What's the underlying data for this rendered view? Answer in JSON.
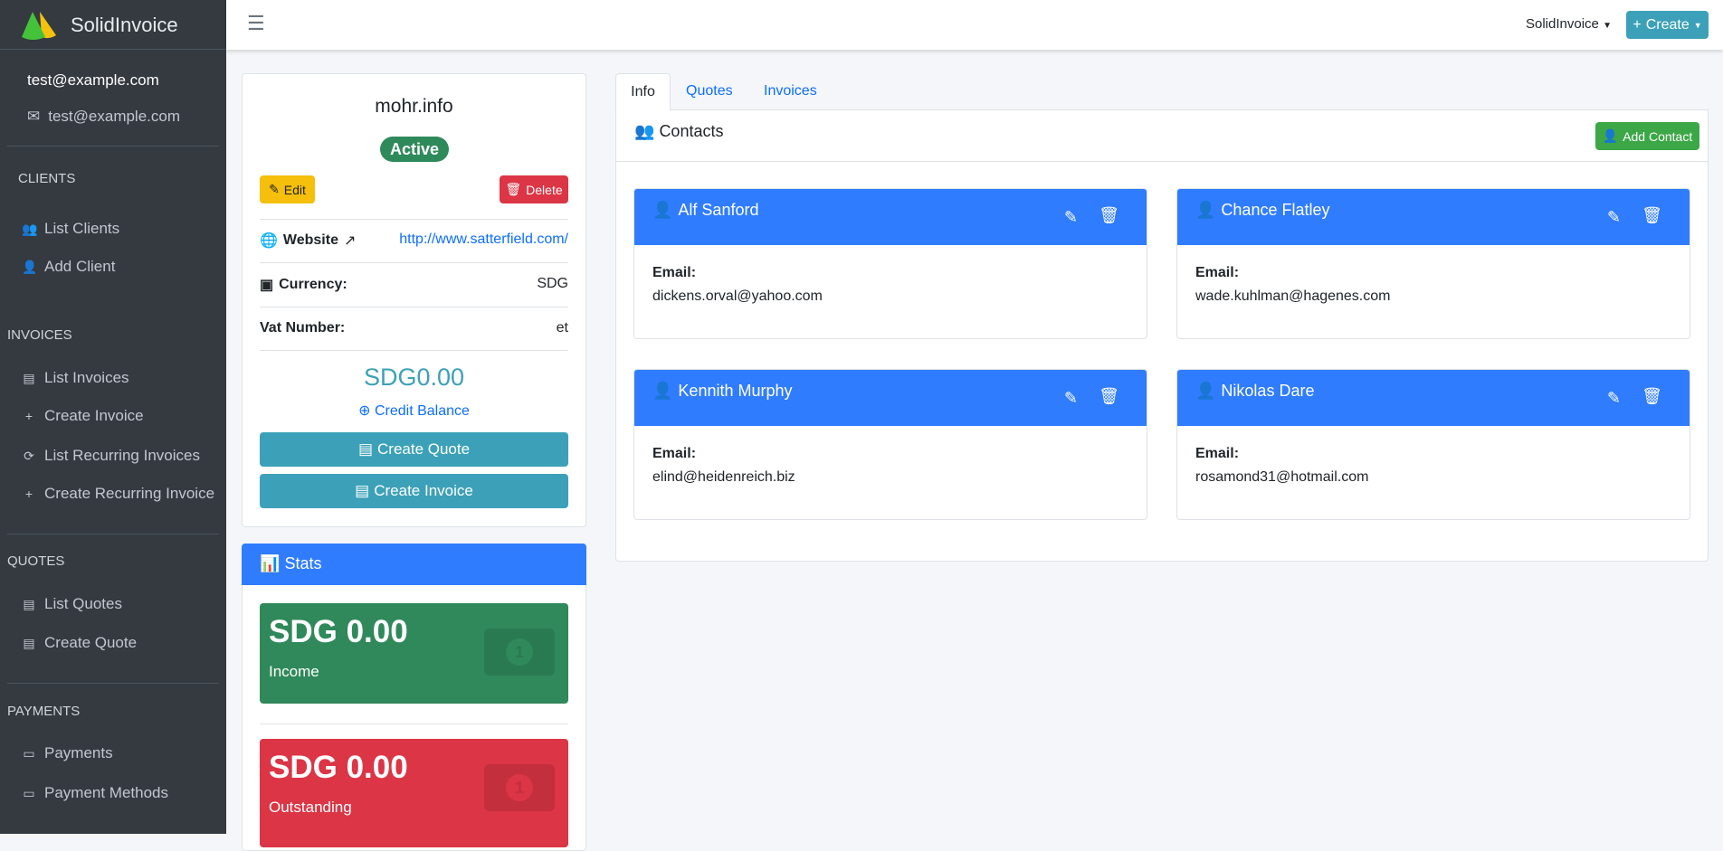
{
  "brand": {
    "name": "SolidInvoice"
  },
  "user": {
    "name": "test@example.com",
    "email": "test@example.com"
  },
  "sidebar": {
    "clients": {
      "heading": "CLIENTS",
      "items": [
        "List Clients",
        "Add Client"
      ]
    },
    "invoices": {
      "heading": "INVOICES",
      "items": [
        "List Invoices",
        "Create Invoice",
        "List Recurring Invoices",
        "Create Recurring Invoice"
      ]
    },
    "quotes": {
      "heading": "QUOTES",
      "items": [
        "List Quotes",
        "Create Quote"
      ]
    },
    "payments": {
      "heading": "PAYMENTS",
      "items": [
        "Payments",
        "Payment Methods"
      ]
    }
  },
  "topbar": {
    "company": "SolidInvoice",
    "create": "Create"
  },
  "client": {
    "name": "mohr.info",
    "status": "Active",
    "edit": "Edit",
    "delete": "Delete",
    "website_label": "Website",
    "website": "http://www.satterfield.com/",
    "currency_label": "Currency:",
    "currency": "SDG",
    "vat_label": "Vat Number:",
    "vat": "et",
    "balance": "SDG0.00",
    "credit_balance": "Credit Balance",
    "create_quote": "Create Quote",
    "create_invoice": "Create Invoice"
  },
  "stats": {
    "title": "Stats",
    "income": {
      "amount": "SDG 0.00",
      "label": "Income"
    },
    "outstanding": {
      "amount": "SDG 0.00",
      "label": "Outstanding"
    }
  },
  "tabs": [
    "Info",
    "Quotes",
    "Invoices"
  ],
  "contacts": {
    "title": "Contacts",
    "add": "Add Contact",
    "email_label": "Email:",
    "items": [
      {
        "name": "Alf Sanford",
        "email": "dickens.orval@yahoo.com"
      },
      {
        "name": "Chance Flatley",
        "email": "wade.kuhlman@hagenes.com"
      },
      {
        "name": "Kennith Murphy",
        "email": "elind@heidenreich.biz"
      },
      {
        "name": "Nikolas Dare",
        "email": "rosamond31@hotmail.com"
      }
    ]
  },
  "colors": {
    "sidebar": "#343a40",
    "primary": "#2f7cff",
    "info": "#3ca1b8",
    "success": "#30895a",
    "danger": "#dc3545",
    "warning": "#ffc107"
  }
}
